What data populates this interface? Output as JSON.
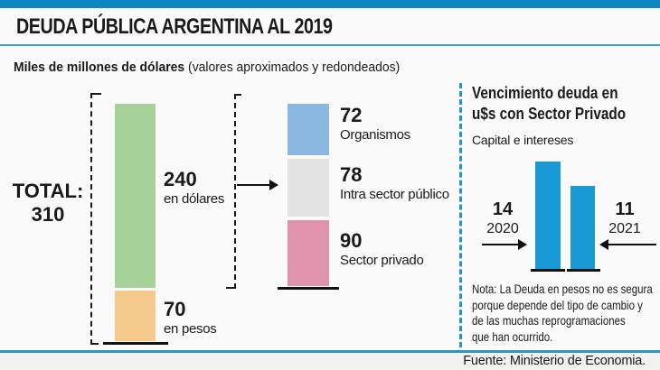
{
  "header": {
    "title": "DEUDA PÚBLICA ARGENTINA AL 2019",
    "subtitle_bold": "Miles de millones de dólares",
    "subtitle_note": "(valores aproximados y redondeados)"
  },
  "colors": {
    "accent_blue": "#0e87c0",
    "rule_blue": "#2e93bd",
    "separator_blue": "#2196c8",
    "green": "#a6d199",
    "orange": "#f5c98c",
    "light_blue": "#8bb8e1",
    "gray": "#e3e3e4",
    "pink": "#e093ac",
    "cyan_bar": "#1a9ad4",
    "text": "#1a1a1a"
  },
  "chart_data": [
    {
      "type": "bar",
      "stacked": true,
      "unit": "miles de millones de dólares",
      "total_label": "TOTAL:",
      "total": 310,
      "segments": [
        {
          "label": "en dólares",
          "value": 240,
          "color": "#a6d199"
        },
        {
          "label": "en pesos",
          "value": 70,
          "color": "#f5c98c"
        }
      ]
    },
    {
      "type": "bar",
      "stacked": true,
      "unit": "miles de millones de dólares",
      "segments": [
        {
          "label": "Organismos",
          "value": 72,
          "color": "#8bb8e1"
        },
        {
          "label": "Intra sector público",
          "value": 78,
          "color": "#e3e3e4"
        },
        {
          "label": "Sector privado",
          "value": 90,
          "color": "#e093ac"
        }
      ]
    },
    {
      "type": "bar",
      "title": "Vencimiento deuda en u$s con Sector Privado",
      "subtitle": "Capital e intereses",
      "categories": [
        "2020",
        "2021"
      ],
      "values": [
        14,
        11
      ],
      "color": "#1a9ad4",
      "note": "Nota: La Deuda en pesos no es segura porque depende del tipo de cambio y de las muchas reprogramaciones que han ocurrido."
    }
  ],
  "right_panel": {
    "title_lines": [
      "Vencimiento deuda en",
      "u$s con Sector Privado"
    ],
    "note_lines": [
      "Nota: La Deuda en pesos no es segura",
      "porque depende del tipo de cambio y",
      "de las muchas reprogramaciones",
      "que han ocurrido."
    ]
  },
  "footer": {
    "source": "Fuente: Ministerio de Economia."
  }
}
